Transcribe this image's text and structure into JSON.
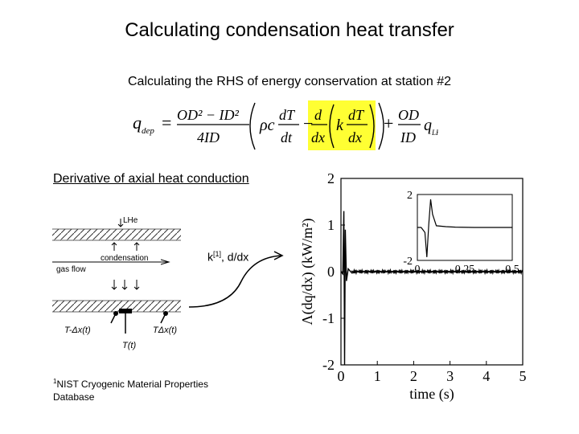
{
  "slide": {
    "title": "Calculating condensation heat transfer",
    "subtitle": "Calculating the RHS of energy conservation at station #2"
  },
  "equation": {
    "lhs": "q",
    "lhs_sub": "dep",
    "frac1_num": "OD² − ID²",
    "frac1_den": "4ID",
    "rho_c": "ρc",
    "dT": "dT",
    "dt": "dt",
    "d": "d",
    "dx": "dx",
    "k": "k",
    "frac_od": "OD",
    "frac_id": "ID",
    "q2": "q",
    "q2_sub": "LHe",
    "highlight_color": "#ffff33"
  },
  "left_panel": {
    "heading": "Derivative of axial heat conduction",
    "ref_label_text": "k",
    "ref_label_sup": "[1]",
    "ref_label_rest": ", d/dx",
    "footnote_sup": "1",
    "footnote_line1": "NIST Cryogenic Material Properties",
    "footnote_line2": "Database",
    "schematic": {
      "lhe": "LHe",
      "condensation": "condensation",
      "gas_flow": "gas flow",
      "t_minus": "T-Δx(t)",
      "t_center": "T(t)",
      "t_plus": "TΔx(t)"
    }
  },
  "chart_data": {
    "type": "line",
    "xlabel": "time (s)",
    "ylabel": "Λ(dq/dx) (kW/m²)",
    "xlim": [
      0,
      5
    ],
    "ylim": [
      -2,
      2
    ],
    "xticks": [
      "0",
      "1",
      "2",
      "3",
      "4",
      "5"
    ],
    "yticks": [
      "2",
      "1",
      "0",
      "-1",
      "-2"
    ],
    "series": [
      {
        "x": [
          0,
          0.05,
          0.08,
          0.1,
          0.12,
          0.15,
          0.2,
          0.3,
          0.5,
          1,
          2,
          3,
          4,
          5
        ],
        "values": [
          0,
          -0.05,
          1.3,
          -2.0,
          0.9,
          -0.2,
          0.06,
          -0.03,
          0.01,
          0,
          0,
          0,
          0,
          0
        ]
      }
    ],
    "inset": {
      "xlim": [
        0,
        0.5
      ],
      "ylim": [
        -2,
        2
      ],
      "xticks": [
        "0",
        "0.25",
        "0.5"
      ],
      "yticks": [
        "2",
        "-2"
      ],
      "x": [
        0,
        0.02,
        0.04,
        0.05,
        0.06,
        0.07,
        0.08,
        0.1,
        0.15,
        0.2,
        0.3,
        0.4,
        0.5
      ],
      "values": [
        0,
        0,
        -0.3,
        -1.8,
        0.2,
        1.7,
        0.8,
        0.1,
        0.05,
        0.02,
        0,
        0,
        0
      ]
    }
  }
}
